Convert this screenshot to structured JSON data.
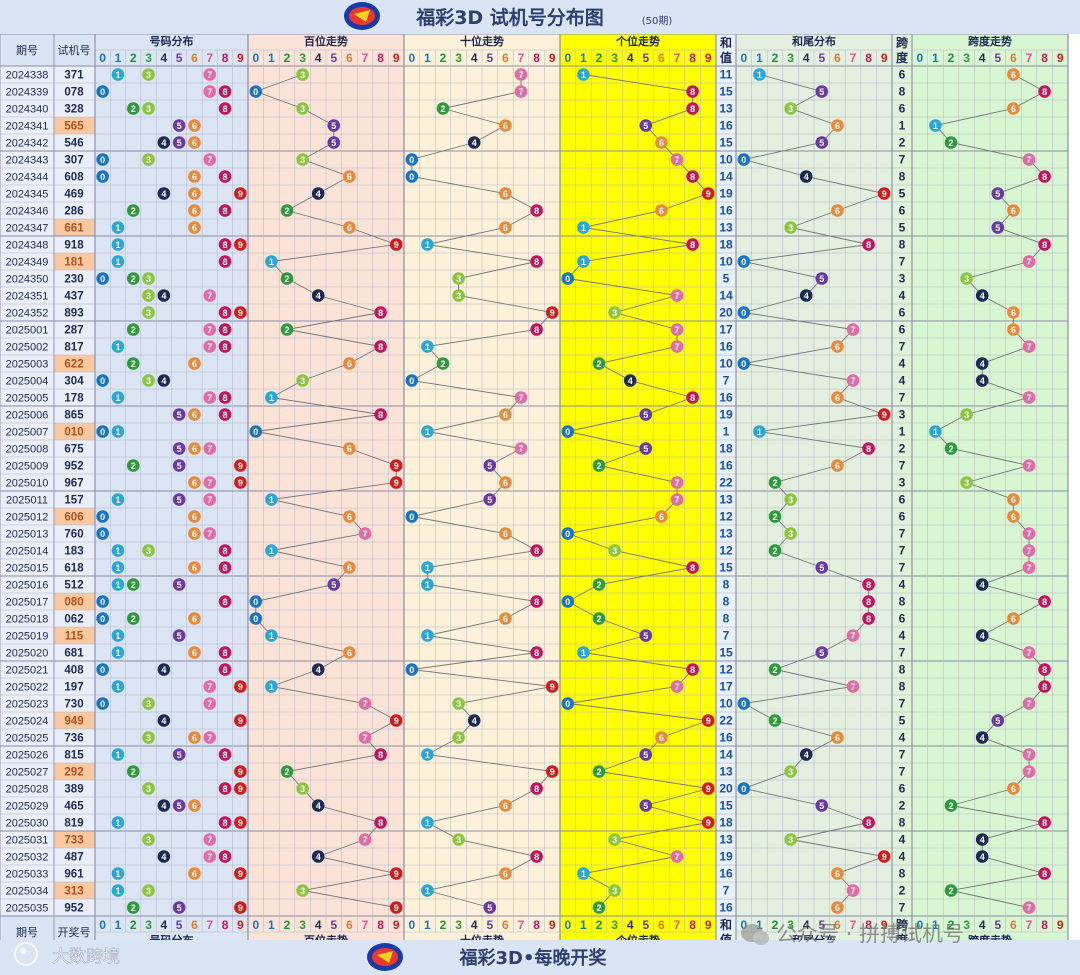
{
  "title": "福彩3D 试机号分布图",
  "subtitle": "(50期)",
  "footer_text": "福彩3D•每晚开奖",
  "watermark_left": "大数跨境",
  "watermark_right": "公众号 · 拼搏试机号",
  "headers": {
    "period": "期号",
    "number": "试机号",
    "number_footer": "开奖号",
    "dist": "号码分布",
    "hundreds": "百位走势",
    "tens": "十位走势",
    "units": "个位走势",
    "sum_top": "和",
    "sum_bottom": "值",
    "sum_tail": "和尾分布",
    "span_top": "跨",
    "span_bottom": "度",
    "span_trend": "跨度走势"
  },
  "digits": [
    "0",
    "1",
    "2",
    "3",
    "4",
    "5",
    "6",
    "7",
    "8",
    "9"
  ],
  "colors": {
    "header_bg": "#d9e4f5",
    "title_color": "#2f3f6f",
    "sec_dist": "#dbe5f3",
    "sec_hundreds": "#fbe3d8",
    "sec_tens": "#fdf2d9",
    "sec_units": "#ffff00",
    "sec_sumtail": "#e3efdf",
    "sec_span": "#d8f6d1",
    "num_highlight": "#f9c9a1",
    "grid": "#b5b5c8",
    "line": "#777777"
  },
  "chart_data": {
    "type": "table",
    "columns": [
      "期号",
      "试机号",
      "号码分布",
      "百位走势",
      "十位走势",
      "个位走势",
      "和值",
      "和尾分布",
      "跨度",
      "跨度走势"
    ],
    "rows": [
      {
        "period": "2024338",
        "number": "371",
        "sum": "11",
        "span": "6",
        "highlight": false
      },
      {
        "period": "2024339",
        "number": "078",
        "sum": "15",
        "span": "8",
        "highlight": false
      },
      {
        "period": "2024340",
        "number": "328",
        "sum": "13",
        "span": "6",
        "highlight": false
      },
      {
        "period": "2024341",
        "number": "565",
        "sum": "16",
        "span": "1",
        "highlight": true
      },
      {
        "period": "2024342",
        "number": "546",
        "sum": "15",
        "span": "2",
        "highlight": false
      },
      {
        "period": "2024343",
        "number": "307",
        "sum": "10",
        "span": "7",
        "highlight": false
      },
      {
        "period": "2024344",
        "number": "608",
        "sum": "14",
        "span": "8",
        "highlight": false
      },
      {
        "period": "2024345",
        "number": "469",
        "sum": "19",
        "span": "5",
        "highlight": false
      },
      {
        "period": "2024346",
        "number": "286",
        "sum": "16",
        "span": "6",
        "highlight": false
      },
      {
        "period": "2024347",
        "number": "661",
        "sum": "13",
        "span": "5",
        "highlight": true
      },
      {
        "period": "2024348",
        "number": "918",
        "sum": "18",
        "span": "8",
        "highlight": false
      },
      {
        "period": "2024349",
        "number": "181",
        "sum": "10",
        "span": "7",
        "highlight": true
      },
      {
        "period": "2024350",
        "number": "230",
        "sum": "5",
        "span": "3",
        "highlight": false
      },
      {
        "period": "2024351",
        "number": "437",
        "sum": "14",
        "span": "4",
        "highlight": false
      },
      {
        "period": "2024352",
        "number": "893",
        "sum": "20",
        "span": "6",
        "highlight": false
      },
      {
        "period": "2025001",
        "number": "287",
        "sum": "17",
        "span": "6",
        "highlight": false
      },
      {
        "period": "2025002",
        "number": "817",
        "sum": "16",
        "span": "7",
        "highlight": false
      },
      {
        "period": "2025003",
        "number": "622",
        "sum": "10",
        "span": "4",
        "highlight": true
      },
      {
        "period": "2025004",
        "number": "304",
        "sum": "7",
        "span": "4",
        "highlight": false
      },
      {
        "period": "2025005",
        "number": "178",
        "sum": "16",
        "span": "7",
        "highlight": false
      },
      {
        "period": "2025006",
        "number": "865",
        "sum": "19",
        "span": "3",
        "highlight": false
      },
      {
        "period": "2025007",
        "number": "010",
        "sum": "1",
        "span": "1",
        "highlight": true
      },
      {
        "period": "2025008",
        "number": "675",
        "sum": "18",
        "span": "2",
        "highlight": false
      },
      {
        "period": "2025009",
        "number": "952",
        "sum": "16",
        "span": "7",
        "highlight": false
      },
      {
        "period": "2025010",
        "number": "967",
        "sum": "22",
        "span": "3",
        "highlight": false
      },
      {
        "period": "2025011",
        "number": "157",
        "sum": "13",
        "span": "6",
        "highlight": false
      },
      {
        "period": "2025012",
        "number": "606",
        "sum": "12",
        "span": "6",
        "highlight": true
      },
      {
        "period": "2025013",
        "number": "760",
        "sum": "13",
        "span": "7",
        "highlight": false
      },
      {
        "period": "2025014",
        "number": "183",
        "sum": "12",
        "span": "7",
        "highlight": false
      },
      {
        "period": "2025015",
        "number": "618",
        "sum": "15",
        "span": "7",
        "highlight": false
      },
      {
        "period": "2025016",
        "number": "512",
        "sum": "8",
        "span": "4",
        "highlight": false
      },
      {
        "period": "2025017",
        "number": "080",
        "sum": "8",
        "span": "8",
        "highlight": true
      },
      {
        "period": "2025018",
        "number": "062",
        "sum": "8",
        "span": "6",
        "highlight": false
      },
      {
        "period": "2025019",
        "number": "115",
        "sum": "7",
        "span": "4",
        "highlight": true
      },
      {
        "period": "2025020",
        "number": "681",
        "sum": "15",
        "span": "7",
        "highlight": false
      },
      {
        "period": "2025021",
        "number": "408",
        "sum": "12",
        "span": "8",
        "highlight": false
      },
      {
        "period": "2025022",
        "number": "197",
        "sum": "17",
        "span": "8",
        "highlight": false
      },
      {
        "period": "2025023",
        "number": "730",
        "sum": "10",
        "span": "7",
        "highlight": false
      },
      {
        "period": "2025024",
        "number": "949",
        "sum": "22",
        "span": "5",
        "highlight": true
      },
      {
        "period": "2025025",
        "number": "736",
        "sum": "16",
        "span": "4",
        "highlight": false
      },
      {
        "period": "2025026",
        "number": "815",
        "sum": "14",
        "span": "7",
        "highlight": false
      },
      {
        "period": "2025027",
        "number": "292",
        "sum": "13",
        "span": "7",
        "highlight": true
      },
      {
        "period": "2025028",
        "number": "389",
        "sum": "20",
        "span": "6",
        "highlight": false
      },
      {
        "period": "2025029",
        "number": "465",
        "sum": "15",
        "span": "2",
        "highlight": false
      },
      {
        "period": "2025030",
        "number": "819",
        "sum": "18",
        "span": "8",
        "highlight": false
      },
      {
        "period": "2025031",
        "number": "733",
        "sum": "13",
        "span": "4",
        "highlight": true
      },
      {
        "period": "2025032",
        "number": "487",
        "sum": "19",
        "span": "4",
        "highlight": false
      },
      {
        "period": "2025033",
        "number": "961",
        "sum": "16",
        "span": "8",
        "highlight": false
      },
      {
        "period": "2025034",
        "number": "313",
        "sum": "7",
        "span": "2",
        "highlight": true
      },
      {
        "period": "2025035",
        "number": "952",
        "sum": "16",
        "span": "7",
        "highlight": false
      }
    ]
  }
}
